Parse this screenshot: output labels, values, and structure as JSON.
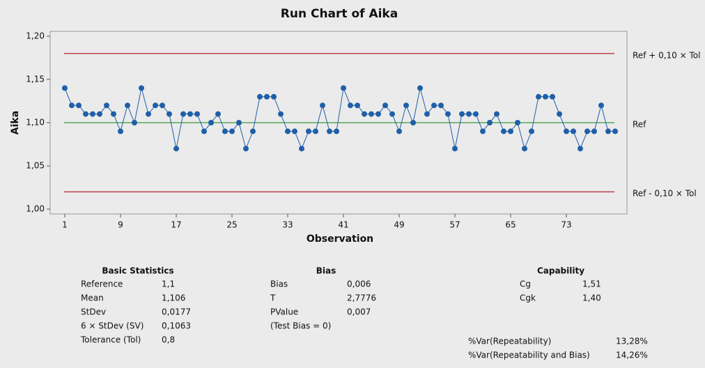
{
  "chart_data": {
    "type": "line",
    "title": "Run Chart of Aika",
    "xlabel": "Observation",
    "ylabel": "Aika",
    "x": [
      1,
      2,
      3,
      4,
      5,
      6,
      7,
      8,
      9,
      10,
      11,
      12,
      13,
      14,
      15,
      16,
      17,
      18,
      19,
      20,
      21,
      22,
      23,
      24,
      25,
      26,
      27,
      28,
      29,
      30,
      31,
      32,
      33,
      34,
      35,
      36,
      37,
      38,
      39,
      40,
      41,
      42,
      43,
      44,
      45,
      46,
      47,
      48,
      49,
      50,
      51,
      52,
      53,
      54,
      55,
      56,
      57,
      58,
      59,
      60,
      61,
      62,
      63,
      64,
      65,
      66,
      67,
      68,
      69,
      70,
      71,
      72,
      73,
      74,
      75,
      76,
      77,
      78,
      79,
      80
    ],
    "series": [
      {
        "color": "#1f5fa8",
        "values": [
          1.14,
          1.12,
          1.12,
          1.11,
          1.11,
          1.11,
          1.12,
          1.11,
          1.09,
          1.12,
          1.1,
          1.14,
          1.11,
          1.12,
          1.12,
          1.11,
          1.07,
          1.11,
          1.11,
          1.11,
          1.09,
          1.1,
          1.11,
          1.09,
          1.09,
          1.1,
          1.07,
          1.09,
          1.13,
          1.13,
          1.13,
          1.11,
          1.09,
          1.09,
          1.07,
          1.09,
          1.09,
          1.12,
          1.09,
          1.09,
          1.14,
          1.12,
          1.12,
          1.11,
          1.11,
          1.11,
          1.12,
          1.11,
          1.09,
          1.12,
          1.1,
          1.14,
          1.11,
          1.12,
          1.12,
          1.11,
          1.07,
          1.11,
          1.11,
          1.11,
          1.09,
          1.1,
          1.11,
          1.09,
          1.09,
          1.1,
          1.07,
          1.09,
          1.13,
          1.13,
          1.13,
          1.11,
          1.09,
          1.09,
          1.07,
          1.09,
          1.09,
          1.12,
          1.09,
          1.09
        ]
      }
    ],
    "xlim": [
      -1.1,
      81.7
    ],
    "xticks": [
      1,
      9,
      17,
      25,
      33,
      41,
      49,
      57,
      65,
      73
    ],
    "ylim": [
      0.9944,
      1.2056
    ],
    "yticks": [
      {
        "value": 1.0,
        "label": "1,00"
      },
      {
        "value": 1.05,
        "label": "1,05"
      },
      {
        "value": 1.1,
        "label": "1,10"
      },
      {
        "value": 1.15,
        "label": "1,15"
      },
      {
        "value": 1.2,
        "label": "1,20"
      }
    ],
    "reference_lines": [
      {
        "value": 1.18,
        "label": "Ref + 0,10 × Tol",
        "color": "#b0262b"
      },
      {
        "value": 1.1,
        "label": "Ref",
        "color": "#3c9a3c"
      },
      {
        "value": 1.02,
        "label": "Ref - 0,10 × Tol",
        "color": "#b0262b"
      }
    ]
  },
  "stats": {
    "basic": {
      "title": "Basic Statistics",
      "rows": [
        [
          "Reference",
          "1,1"
        ],
        [
          "Mean",
          "1,106"
        ],
        [
          "StDev",
          "0,0177"
        ],
        [
          "6 × StDev (SV)",
          "0,1063"
        ],
        [
          "Tolerance (Tol)",
          "0,8"
        ]
      ]
    },
    "bias": {
      "title": "Bias",
      "rows": [
        [
          "Bias",
          "0,006"
        ],
        [
          "T",
          "2,7776"
        ],
        [
          "PValue",
          "0,007"
        ],
        [
          "(Test Bias = 0)"
        ]
      ]
    },
    "capability": {
      "title": "Capability",
      "rows": [
        [
          "Cg",
          "1,51"
        ],
        [
          "Cgk",
          "1,40"
        ]
      ]
    },
    "variation": {
      "rows": [
        [
          "%Var(Repeatability)",
          "13,28%"
        ],
        [
          "%Var(Repeatability and Bias)",
          "14,26%"
        ]
      ]
    }
  }
}
